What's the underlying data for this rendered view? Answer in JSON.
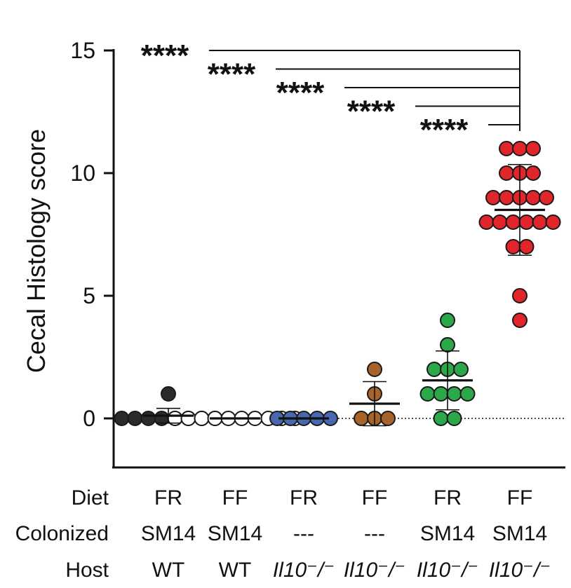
{
  "chart_data": {
    "type": "scatter",
    "title": "",
    "xlabel": "",
    "ylabel": "Cecal Histology score",
    "ylim": [
      -2,
      15
    ],
    "yticks": [
      0,
      5,
      10,
      15
    ],
    "baseline": 0,
    "row_labels": [
      "Diet",
      "Colonized",
      "Host"
    ],
    "groups": [
      {
        "diet": "FR",
        "colonized": "SM14",
        "host": "WT",
        "color": "#2b2b2b",
        "values": [
          1,
          0,
          0,
          0,
          0,
          0,
          0,
          0,
          0
        ],
        "mean": 0.11,
        "sd": 0.3
      },
      {
        "diet": "FF",
        "colonized": "SM14",
        "host": "WT",
        "color": "#ffffff",
        "values": [
          0,
          0,
          0,
          0,
          0,
          0,
          0,
          0,
          0,
          0
        ],
        "mean": 0,
        "sd": 0
      },
      {
        "diet": "FR",
        "colonized": "---",
        "host": "Il10⁻/⁻",
        "color": "#4a68b0",
        "values": [
          0,
          0,
          0,
          0,
          0
        ],
        "mean": 0,
        "sd": 0
      },
      {
        "diet": "FF",
        "colonized": "---",
        "host": "Il10⁻/⁻",
        "color": "#a8632a",
        "values": [
          2,
          1,
          0,
          0,
          0
        ],
        "mean": 0.6,
        "sd": 0.9
      },
      {
        "diet": "FR",
        "colonized": "SM14",
        "host": "Il10⁻/⁻",
        "color": "#2aa84a",
        "values": [
          4,
          3,
          2,
          2,
          2,
          1,
          1,
          1,
          1,
          0,
          0
        ],
        "mean": 1.55,
        "sd": 1.2
      },
      {
        "diet": "FF",
        "colonized": "SM14",
        "host": "Il10⁻/⁻",
        "color": "#e0262b",
        "values": [
          11,
          11,
          11,
          10,
          10,
          10,
          9,
          9,
          9,
          9,
          9,
          8,
          8,
          8,
          8,
          8,
          8,
          7,
          7,
          5,
          4
        ],
        "mean": 8.5,
        "sd": 1.85
      }
    ],
    "significance": [
      {
        "from": 0,
        "to": 5,
        "label": "****"
      },
      {
        "from": 1,
        "to": 5,
        "label": "****"
      },
      {
        "from": 2,
        "to": 5,
        "label": "****"
      },
      {
        "from": 3,
        "to": 5,
        "label": "****"
      },
      {
        "from": 4,
        "to": 5,
        "label": "****"
      }
    ]
  }
}
